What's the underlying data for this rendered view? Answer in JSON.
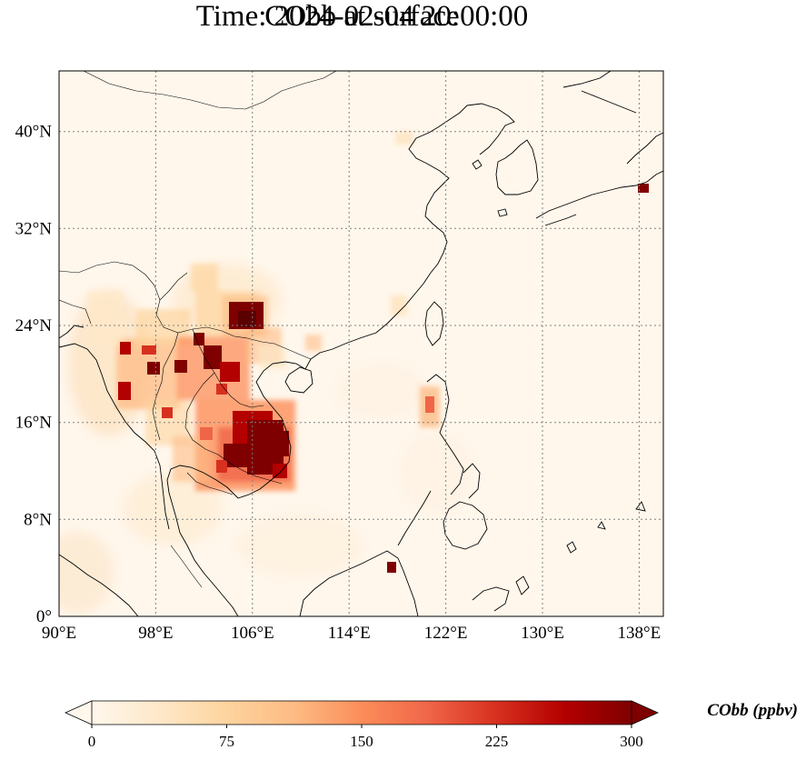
{
  "title": {
    "line1": "CObb at surface",
    "line2": "Time: 2024-02-04 20:00:00"
  },
  "map": {
    "projection": "plate-carree",
    "lon_range": [
      90,
      140
    ],
    "lat_range": [
      0,
      45
    ],
    "lon_ticks": [
      90,
      98,
      106,
      114,
      122,
      130,
      138
    ],
    "lat_ticks": [
      0,
      8,
      16,
      24,
      32,
      40
    ],
    "lon_tick_labels": [
      "90°E",
      "98°E",
      "106°E",
      "114°E",
      "122°E",
      "130°E",
      "138°E"
    ],
    "lat_tick_labels": [
      "0°",
      "8°N",
      "16°N",
      "24°N",
      "32°N",
      "40°N"
    ],
    "gridlines": "dotted",
    "field_name": "CObb",
    "hotspots": [
      {
        "region": "Cambodia / southern Laos",
        "lon_range": [
          103.5,
          108.5
        ],
        "lat_range": [
          12.0,
          17.5
        ],
        "level": "high"
      },
      {
        "region": "northern Laos / northern Vietnam",
        "lon_range": [
          101.0,
          106.0
        ],
        "lat_range": [
          18.0,
          22.5
        ],
        "level": "high"
      },
      {
        "region": "Yunnan",
        "lon_range": [
          104.5,
          107.0
        ],
        "lat_range": [
          23.5,
          25.5
        ],
        "level": "high"
      },
      {
        "region": "Myanmar / northern Thailand",
        "lon_range": [
          94.5,
          100.5
        ],
        "lat_range": [
          16.5,
          23.0
        ],
        "level": "moderate"
      },
      {
        "region": "Luzon",
        "lon_range": [
          120.0,
          121.5
        ],
        "lat_range": [
          15.0,
          18.0
        ],
        "level": "moderate"
      },
      {
        "region": "Japan",
        "lon_range": [
          138.0,
          139.0
        ],
        "lat_range": [
          35.0,
          36.0
        ],
        "level": "high"
      },
      {
        "region": "Borneo north",
        "lon_range": [
          116.5,
          117.5
        ],
        "lat_range": [
          3.5,
          4.5
        ],
        "level": "high"
      }
    ]
  },
  "colorbar": {
    "label": "CObb (ppbv)",
    "min": 0,
    "max": 300,
    "ticks": [
      0,
      75,
      150,
      225,
      300
    ],
    "tick_labels": [
      "0",
      "75",
      "150",
      "225",
      "300"
    ],
    "extend": "both",
    "colormap": "OrRd",
    "colors": [
      "#fff7ec",
      "#fee8c8",
      "#fdd49e",
      "#fdbb84",
      "#fc8d59",
      "#ef6548",
      "#d7301f",
      "#b30000",
      "#7f0000"
    ]
  }
}
